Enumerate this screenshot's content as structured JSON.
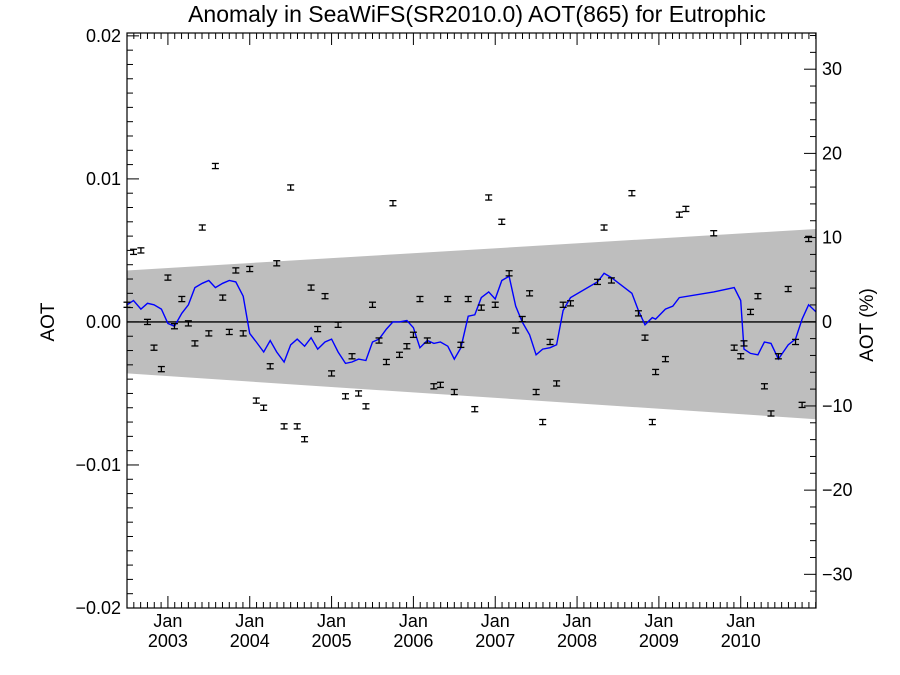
{
  "chart_data": {
    "type": "scatter",
    "title": "Anomaly in SeaWiFS(SR2010.0) AOT(865) for Eutrophic",
    "ylabel": "AOT",
    "ylabel_right": "AOT (%)",
    "xlabel": "",
    "xlim": [
      2002.5,
      2010.92
    ],
    "ylim": [
      -0.02,
      0.0202
    ],
    "ylim_right": [
      -34,
      34.3
    ],
    "x_ticks": [
      {
        "x": 2003.0,
        "line1": "Jan",
        "line2": "2003"
      },
      {
        "x": 2004.0,
        "line1": "Jan",
        "line2": "2004"
      },
      {
        "x": 2005.0,
        "line1": "Jan",
        "line2": "2005"
      },
      {
        "x": 2006.0,
        "line1": "Jan",
        "line2": "2006"
      },
      {
        "x": 2007.0,
        "line1": "Jan",
        "line2": "2007"
      },
      {
        "x": 2008.0,
        "line1": "Jan",
        "line2": "2008"
      },
      {
        "x": 2009.0,
        "line1": "Jan",
        "line2": "2009"
      },
      {
        "x": 2010.0,
        "line1": "Jan",
        "line2": "2010"
      }
    ],
    "y_ticks_left": [
      {
        "v": 0.02,
        "label": "0.02"
      },
      {
        "v": 0.01,
        "label": "0.01"
      },
      {
        "v": 0.0,
        "label": "0.00"
      },
      {
        "v": -0.01,
        "label": "−0.01"
      },
      {
        "v": -0.02,
        "label": "−0.02"
      }
    ],
    "y_ticks_right": [
      {
        "v": 30,
        "label": "30"
      },
      {
        "v": 20,
        "label": "20"
      },
      {
        "v": 10,
        "label": "10"
      },
      {
        "v": 0,
        "label": "0"
      },
      {
        "v": -10,
        "label": "−10"
      },
      {
        "v": -20,
        "label": "−20"
      },
      {
        "v": -30,
        "label": "−30"
      }
    ],
    "band": {
      "upper": [
        [
          2002.5,
          0.0036
        ],
        [
          2010.92,
          0.0065
        ]
      ],
      "lower": [
        [
          2002.5,
          -0.0036
        ],
        [
          2010.92,
          -0.0068
        ]
      ],
      "color": "#bebebe"
    },
    "zero_line": 0.0,
    "points": [
      [
        2002.5,
        0.0012
      ],
      [
        2002.58,
        0.0049
      ],
      [
        2002.67,
        0.005
      ],
      [
        2002.75,
        0.0
      ],
      [
        2002.83,
        -0.0018
      ],
      [
        2002.92,
        -0.0033
      ],
      [
        2003.0,
        0.0031
      ],
      [
        2003.08,
        -0.0003
      ],
      [
        2003.17,
        0.0016
      ],
      [
        2003.25,
        -0.0001
      ],
      [
        2003.33,
        -0.0015
      ],
      [
        2003.42,
        0.0066
      ],
      [
        2003.5,
        -0.0008
      ],
      [
        2003.58,
        0.0109
      ],
      [
        2003.67,
        0.0017
      ],
      [
        2003.75,
        -0.0007
      ],
      [
        2003.83,
        0.0036
      ],
      [
        2003.92,
        -0.0008
      ],
      [
        2004.0,
        0.0037
      ],
      [
        2004.08,
        -0.0055
      ],
      [
        2004.17,
        -0.006
      ],
      [
        2004.25,
        -0.0031
      ],
      [
        2004.33,
        0.0041
      ],
      [
        2004.42,
        -0.0073
      ],
      [
        2004.5,
        0.0094
      ],
      [
        2004.58,
        -0.0073
      ],
      [
        2004.67,
        -0.0082
      ],
      [
        2004.75,
        0.0024
      ],
      [
        2004.83,
        -0.0005
      ],
      [
        2004.92,
        0.0018
      ],
      [
        2005.0,
        -0.0036
      ],
      [
        2005.08,
        -0.0002
      ],
      [
        2005.17,
        -0.0052
      ],
      [
        2005.25,
        -0.0024
      ],
      [
        2005.33,
        -0.005
      ],
      [
        2005.42,
        -0.0059
      ],
      [
        2005.5,
        0.0012
      ],
      [
        2005.58,
        -0.0013
      ],
      [
        2005.67,
        -0.0028
      ],
      [
        2005.75,
        0.0083
      ],
      [
        2005.83,
        -0.0023
      ],
      [
        2005.92,
        -0.0017
      ],
      [
        2006.0,
        -0.0009
      ],
      [
        2006.08,
        0.0016
      ],
      [
        2006.17,
        -0.0013
      ],
      [
        2006.25,
        -0.0045
      ],
      [
        2006.33,
        -0.0044
      ],
      [
        2006.42,
        0.0016
      ],
      [
        2006.5,
        -0.0049
      ],
      [
        2006.58,
        -0.0016
      ],
      [
        2006.67,
        0.0016
      ],
      [
        2006.75,
        -0.0061
      ],
      [
        2006.83,
        0.001
      ],
      [
        2006.92,
        0.0087
      ],
      [
        2007.0,
        0.0012
      ],
      [
        2007.08,
        0.007
      ],
      [
        2007.17,
        0.0034
      ],
      [
        2007.25,
        -0.0006
      ],
      [
        2007.33,
        0.0002
      ],
      [
        2007.42,
        0.002
      ],
      [
        2007.5,
        -0.0049
      ],
      [
        2007.58,
        -0.007
      ],
      [
        2007.67,
        -0.0014
      ],
      [
        2007.75,
        -0.0043
      ],
      [
        2007.83,
        0.0012
      ],
      [
        2007.92,
        0.0013
      ],
      [
        2008.25,
        0.0028
      ],
      [
        2008.33,
        0.0066
      ],
      [
        2008.42,
        0.0029
      ],
      [
        2008.67,
        0.009
      ],
      [
        2008.75,
        0.0006
      ],
      [
        2008.83,
        -0.0011
      ],
      [
        2008.92,
        -0.007
      ],
      [
        2008.96,
        -0.0035
      ],
      [
        2009.08,
        -0.0026
      ],
      [
        2009.25,
        0.0075
      ],
      [
        2009.33,
        0.0079
      ],
      [
        2009.67,
        0.0062
      ],
      [
        2009.92,
        -0.0018
      ],
      [
        2010.0,
        -0.0024
      ],
      [
        2010.04,
        -0.0015
      ],
      [
        2010.12,
        0.0007
      ],
      [
        2010.21,
        0.0018
      ],
      [
        2010.29,
        -0.0045
      ],
      [
        2010.37,
        -0.0064
      ],
      [
        2010.46,
        -0.0024
      ],
      [
        2010.58,
        0.0023
      ],
      [
        2010.67,
        -0.0014
      ],
      [
        2010.75,
        -0.0058
      ],
      [
        2010.83,
        0.0058
      ]
    ],
    "error_halfwidth": 0.00018,
    "line": {
      "color": "#0000ff",
      "points": [
        [
          2002.5,
          0.0012
        ],
        [
          2002.58,
          0.0015
        ],
        [
          2002.67,
          0.0009
        ],
        [
          2002.75,
          0.0013
        ],
        [
          2002.83,
          0.0012
        ],
        [
          2002.92,
          0.0009
        ],
        [
          2003.0,
          -0.0001
        ],
        [
          2003.08,
          -0.0003
        ],
        [
          2003.17,
          0.0006
        ],
        [
          2003.25,
          0.0012
        ],
        [
          2003.33,
          0.0024
        ],
        [
          2003.42,
          0.0027
        ],
        [
          2003.5,
          0.0029
        ],
        [
          2003.58,
          0.0024
        ],
        [
          2003.67,
          0.0027
        ],
        [
          2003.75,
          0.0029
        ],
        [
          2003.83,
          0.0028
        ],
        [
          2003.92,
          0.0018
        ],
        [
          2004.0,
          -0.0008
        ],
        [
          2004.08,
          -0.0014
        ],
        [
          2004.17,
          -0.0021
        ],
        [
          2004.25,
          -0.0013
        ],
        [
          2004.33,
          -0.0021
        ],
        [
          2004.42,
          -0.0028
        ],
        [
          2004.5,
          -0.0016
        ],
        [
          2004.58,
          -0.0012
        ],
        [
          2004.67,
          -0.0017
        ],
        [
          2004.75,
          -0.0011
        ],
        [
          2004.83,
          -0.0019
        ],
        [
          2004.92,
          -0.0014
        ],
        [
          2005.0,
          -0.0012
        ],
        [
          2005.08,
          -0.0021
        ],
        [
          2005.17,
          -0.0029
        ],
        [
          2005.25,
          -0.0028
        ],
        [
          2005.33,
          -0.0026
        ],
        [
          2005.42,
          -0.0027
        ],
        [
          2005.5,
          -0.0014
        ],
        [
          2005.58,
          -0.0012
        ],
        [
          2005.67,
          -0.0005
        ],
        [
          2005.75,
          0.0
        ],
        [
          2005.83,
          0.0
        ],
        [
          2005.92,
          0.0001
        ],
        [
          2006.0,
          -0.0004
        ],
        [
          2006.08,
          -0.0018
        ],
        [
          2006.17,
          -0.0013
        ],
        [
          2006.25,
          -0.0015
        ],
        [
          2006.33,
          -0.0014
        ],
        [
          2006.42,
          -0.0017
        ],
        [
          2006.5,
          -0.0026
        ],
        [
          2006.58,
          -0.0018
        ],
        [
          2006.67,
          0.0004
        ],
        [
          2006.75,
          0.0005
        ],
        [
          2006.83,
          0.0017
        ],
        [
          2006.92,
          0.0021
        ],
        [
          2007.0,
          0.0016
        ],
        [
          2007.08,
          0.0029
        ],
        [
          2007.17,
          0.0032
        ],
        [
          2007.25,
          0.0011
        ],
        [
          2007.33,
          0.0
        ],
        [
          2007.42,
          -0.0009
        ],
        [
          2007.5,
          -0.0023
        ],
        [
          2007.58,
          -0.0019
        ],
        [
          2007.67,
          -0.0018
        ],
        [
          2007.75,
          -0.0016
        ],
        [
          2007.83,
          0.0008
        ],
        [
          2007.92,
          0.0017
        ],
        [
          2008.25,
          0.0028
        ],
        [
          2008.33,
          0.0034
        ],
        [
          2008.42,
          0.0031
        ],
        [
          2008.67,
          0.002
        ],
        [
          2008.75,
          0.0008
        ],
        [
          2008.83,
          -0.0002
        ],
        [
          2008.92,
          0.0003
        ],
        [
          2008.96,
          0.0002
        ],
        [
          2009.08,
          0.0009
        ],
        [
          2009.17,
          0.0011
        ],
        [
          2009.25,
          0.0017
        ],
        [
          2009.67,
          0.0021
        ],
        [
          2009.92,
          0.0024
        ],
        [
          2010.0,
          0.0015
        ],
        [
          2010.04,
          -0.0019
        ],
        [
          2010.12,
          -0.0022
        ],
        [
          2010.21,
          -0.0023
        ],
        [
          2010.29,
          -0.0014
        ],
        [
          2010.37,
          -0.0015
        ],
        [
          2010.46,
          -0.0026
        ],
        [
          2010.58,
          -0.0016
        ],
        [
          2010.67,
          -0.0012
        ],
        [
          2010.75,
          0.0002
        ],
        [
          2010.83,
          0.0012
        ],
        [
          2010.92,
          0.0007
        ]
      ]
    },
    "grid": false,
    "legend": "none"
  }
}
